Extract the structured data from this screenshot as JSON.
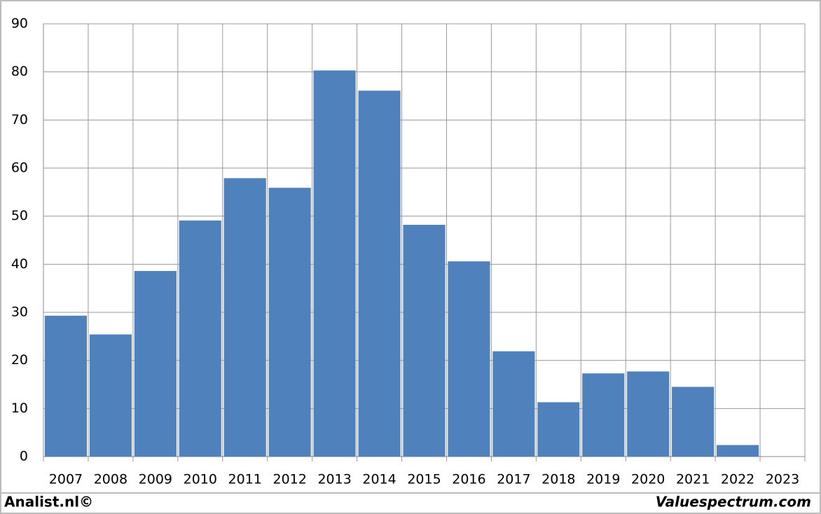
{
  "chart_data": {
    "type": "bar",
    "categories": [
      "2007",
      "2008",
      "2009",
      "2010",
      "2011",
      "2012",
      "2013",
      "2014",
      "2015",
      "2016",
      "2017",
      "2018",
      "2019",
      "2020",
      "2021",
      "2022",
      "2023"
    ],
    "values": [
      29.3,
      25.4,
      38.6,
      49.1,
      57.9,
      55.9,
      80.3,
      76.1,
      48.2,
      40.6,
      21.9,
      11.3,
      17.3,
      17.7,
      14.5,
      2.4,
      null
    ],
    "color": "#4f81bd",
    "ylim": [
      0,
      90
    ],
    "yticks": [
      0,
      10,
      20,
      30,
      40,
      50,
      60,
      70,
      80,
      90
    ],
    "grid": true
  },
  "footer": {
    "left": "Analist.nl©",
    "right": "Valuespectrum.com"
  }
}
